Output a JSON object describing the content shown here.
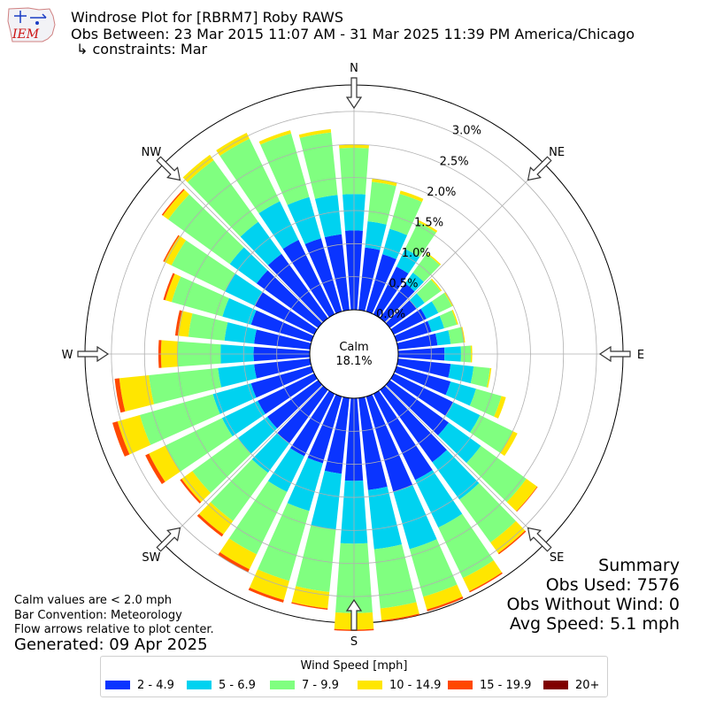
{
  "header": {
    "title": "Windrose Plot for [RBRM7] Roby RAWS",
    "obs_between": "Obs Between: 23 Mar 2015 11:07 AM - 31 Mar 2025 11:39 PM America/Chicago",
    "constraints": "↳ constraints: Mar",
    "logo_text": "IEM"
  },
  "notes": {
    "calm_def": "Calm values are < 2.0 mph",
    "bar_convention": "Bar Convention: Meteorology",
    "flow_arrows": "Flow arrows relative to plot center.",
    "generated": "Generated: 09 Apr 2025"
  },
  "summary": {
    "heading": "Summary",
    "obs_used": "Obs Used: 7576",
    "obs_without_wind": "Obs Without Wind: 0",
    "avg_speed": "Avg Speed: 5.1 mph"
  },
  "legend": {
    "title": "Wind Speed [mph]"
  },
  "colors": {
    "bins": [
      "#0a34ff",
      "#00d2f0",
      "#80ff80",
      "#ffe600",
      "#ff4800",
      "#800000"
    ],
    "grid": "#b0b0b0",
    "calm_fill": "#ffffff"
  },
  "chart_data": {
    "type": "windrose",
    "calm": {
      "label": "Calm",
      "value_text": "18.1%",
      "percent": 18.1
    },
    "compass_labels": [
      "N",
      "NE",
      "E",
      "SE",
      "S",
      "SW",
      "W",
      "NW"
    ],
    "radial_ticks": [
      "0.0%",
      "0.5%",
      "1.0%",
      "1.5%",
      "2.0%",
      "2.5%",
      "3.0%"
    ],
    "rlim": [
      0,
      3.4
    ],
    "unit": "%",
    "speed_bins": [
      "2 - 4.9",
      "5 - 6.9",
      "7 - 9.9",
      "10 - 14.9",
      "15 - 19.9",
      "20+"
    ],
    "direction_step_deg": 10,
    "directions_deg": [
      0,
      10,
      20,
      30,
      40,
      50,
      60,
      70,
      80,
      90,
      100,
      110,
      120,
      130,
      140,
      150,
      160,
      170,
      180,
      190,
      200,
      210,
      220,
      230,
      240,
      250,
      260,
      270,
      280,
      290,
      300,
      310,
      320,
      330,
      340,
      350
    ],
    "cumulative_percent": [
      [
        1.2,
        1.75,
        2.45,
        2.5,
        2.5,
        2.5
      ],
      [
        0.95,
        1.35,
        1.95,
        2.0,
        2.0,
        2.0
      ],
      [
        0.9,
        1.3,
        1.85,
        1.9,
        1.9,
        1.9
      ],
      [
        0.8,
        1.1,
        1.55,
        1.58,
        1.58,
        1.58
      ],
      [
        0.65,
        0.85,
        1.2,
        1.22,
        1.22,
        1.22
      ],
      [
        0.5,
        0.65,
        0.95,
        0.97,
        0.97,
        0.97
      ],
      [
        0.55,
        0.75,
        0.98,
        1.0,
        1.0,
        1.0
      ],
      [
        0.55,
        0.75,
        0.95,
        0.97,
        0.97,
        0.97
      ],
      [
        0.6,
        0.8,
        1.0,
        1.02,
        1.02,
        1.02
      ],
      [
        0.7,
        0.95,
        1.1,
        1.12,
        1.12,
        1.12
      ],
      [
        0.8,
        1.15,
        1.4,
        1.42,
        1.42,
        1.42
      ],
      [
        0.85,
        1.25,
        1.65,
        1.72,
        1.72,
        1.72
      ],
      [
        1.0,
        1.45,
        2.0,
        2.08,
        2.08,
        2.08
      ],
      [
        1.1,
        1.7,
        2.55,
        2.75,
        2.76,
        2.76
      ],
      [
        1.35,
        2.05,
        2.85,
        3.05,
        3.07,
        3.07
      ],
      [
        1.45,
        2.25,
        3.1,
        3.32,
        3.34,
        3.34
      ],
      [
        1.5,
        2.4,
        3.15,
        3.35,
        3.38,
        3.38
      ],
      [
        1.4,
        2.3,
        3.2,
        3.38,
        3.4,
        3.4
      ],
      [
        1.25,
        2.2,
        3.25,
        3.5,
        3.52,
        3.52
      ],
      [
        1.15,
        2.0,
        2.95,
        3.2,
        3.22,
        3.22
      ],
      [
        1.05,
        1.8,
        2.9,
        3.2,
        3.24,
        3.24
      ],
      [
        1.05,
        1.65,
        2.7,
        2.95,
        3.0,
        3.0
      ],
      [
        1.0,
        1.55,
        2.45,
        2.7,
        2.74,
        2.74
      ],
      [
        0.95,
        1.5,
        2.35,
        2.55,
        2.58,
        2.58
      ],
      [
        0.95,
        1.55,
        2.5,
        2.78,
        2.84,
        2.84
      ],
      [
        0.95,
        1.55,
        2.7,
        3.05,
        3.13,
        3.13
      ],
      [
        0.85,
        1.4,
        2.45,
        2.9,
        2.97,
        2.97
      ],
      [
        0.85,
        1.35,
        2.0,
        2.25,
        2.29,
        2.29
      ],
      [
        0.85,
        1.3,
        1.85,
        2.01,
        2.05,
        2.05
      ],
      [
        0.95,
        1.4,
        2.2,
        2.3,
        2.33,
        2.33
      ],
      [
        1.0,
        1.5,
        2.4,
        2.52,
        2.54,
        2.54
      ],
      [
        1.15,
        1.65,
        2.8,
        2.9,
        2.92,
        2.92
      ],
      [
        1.2,
        1.8,
        2.95,
        3.05,
        3.05,
        3.05
      ],
      [
        1.25,
        1.9,
        2.95,
        3.05,
        3.05,
        3.05
      ],
      [
        1.15,
        1.8,
        2.8,
        2.85,
        2.85,
        2.85
      ],
      [
        1.15,
        1.75,
        2.7,
        2.75,
        2.75,
        2.75
      ]
    ]
  }
}
